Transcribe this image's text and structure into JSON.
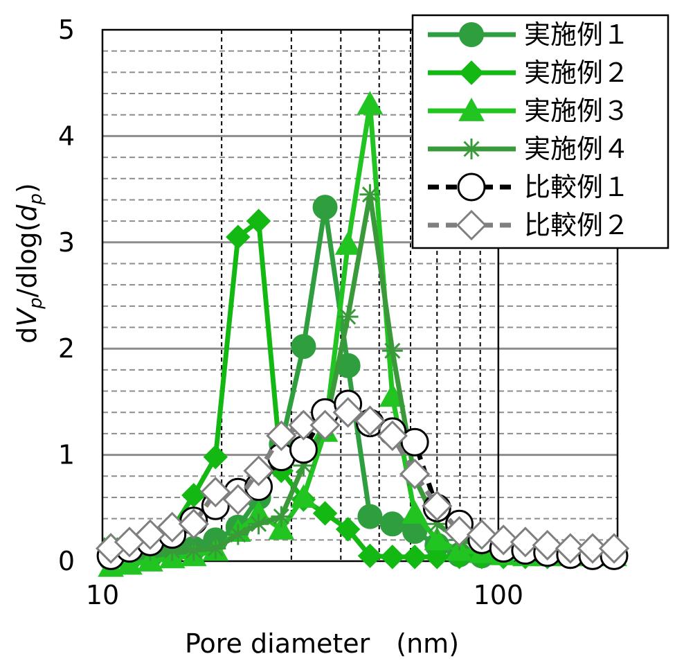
{
  "chart_data": {
    "type": "line",
    "xscale": "log",
    "xlim": [
      10,
      200
    ],
    "ylim": [
      0,
      5
    ],
    "xticks": [
      10,
      100
    ],
    "xtick_labels": [
      "10",
      "100"
    ],
    "yticks": [
      0,
      1,
      2,
      3,
      4,
      5
    ],
    "ytick_labels": [
      "0",
      "1",
      "2",
      "3",
      "4",
      "5"
    ],
    "xlabel": "Pore diameter　(nm)",
    "ylabel": {
      "d": "d",
      "V": "V",
      "p": "p",
      "slash": "/",
      "dlog": "dlog(",
      "dp": "d",
      "sub": "p",
      "close": ")"
    },
    "grid": true,
    "legend_position": "top-right",
    "series": [
      {
        "name": "実施例１",
        "color": "#2e9e3e",
        "marker": "circle",
        "dash": "solid",
        "x": [
          10.5,
          11.7,
          13.2,
          15,
          17,
          19.3,
          22,
          24.8,
          28.3,
          32.2,
          36.5,
          41.7,
          47.4,
          54,
          61.5,
          70,
          79.7,
          90.8
        ],
        "y": [
          0.02,
          0.03,
          0.05,
          0.08,
          0.12,
          0.2,
          0.32,
          0.6,
          1.1,
          2.02,
          3.33,
          1.84,
          0.42,
          0.35,
          0.28,
          0.15,
          0.06,
          0.05
        ]
      },
      {
        "name": "実施例２",
        "color": "#13b813",
        "marker": "diamond",
        "dash": "solid",
        "x": [
          10.5,
          11.7,
          13.2,
          15,
          17,
          19.3,
          22,
          24.8,
          28.3,
          32.2,
          36.5,
          41.7,
          47.4,
          54,
          61.5,
          70,
          79.7,
          90.8,
          103,
          117,
          133,
          152,
          173,
          196
        ],
        "y": [
          0.15,
          0.18,
          0.22,
          0.3,
          0.62,
          0.98,
          3.05,
          3.2,
          0.85,
          0.58,
          0.45,
          0.3,
          0.05,
          0.04,
          0.04,
          0.04,
          0.04,
          0.04,
          0.04,
          0.04,
          0.04,
          0.04,
          0.04,
          0.04
        ]
      },
      {
        "name": "実施例３",
        "color": "#22c422",
        "marker": "triangle",
        "dash": "solid",
        "x": [
          10.5,
          11.7,
          13.2,
          15,
          17,
          19.3,
          22,
          24.8,
          28.3,
          32.2,
          36.5,
          41.7,
          47.4,
          54,
          61.5,
          70,
          79.7,
          90.8,
          103,
          117,
          133,
          152,
          173,
          196
        ],
        "y": [
          -0.05,
          -0.03,
          0,
          0.03,
          0.05,
          0.1,
          0.28,
          0.45,
          0.3,
          0.6,
          1.22,
          2.98,
          4.3,
          1.55,
          0.45,
          0.2,
          0.1,
          0.08,
          0.06,
          0.05,
          0.05,
          0.05,
          0.05,
          0.05
        ]
      },
      {
        "name": "実施例４",
        "color": "#3a9a3a",
        "marker": "asterisk",
        "dash": "solid",
        "x": [
          10.5,
          11.7,
          13.2,
          15,
          17,
          19.3,
          22,
          24.8,
          28.3,
          32.2,
          36.5,
          41.7,
          47.4,
          54,
          61.5,
          70,
          79.7,
          90.8,
          103,
          117,
          133,
          152,
          173,
          196
        ],
        "y": [
          0.15,
          0.12,
          0.1,
          0.1,
          0.1,
          0.12,
          0.25,
          0.35,
          0.42,
          0.9,
          1.25,
          2.3,
          3.45,
          1.98,
          0.78,
          0.35,
          0.2,
          0.15,
          0.12,
          0.12,
          0.12,
          0.12,
          0.12,
          0.12
        ]
      },
      {
        "name": "比較例１",
        "color": "#000000",
        "marker": "circle-open",
        "dash": "dashed",
        "x": [
          10.5,
          11.7,
          13.2,
          15,
          17,
          19.3,
          22,
          24.8,
          28.3,
          32.2,
          36.5,
          41.7,
          47.4,
          54,
          61.5,
          70,
          79.7,
          90.8,
          103,
          117,
          133,
          152,
          173,
          196
        ],
        "y": [
          0.05,
          0.12,
          0.18,
          0.25,
          0.38,
          0.52,
          0.65,
          0.7,
          0.98,
          1.05,
          1.4,
          1.48,
          1.3,
          1.22,
          1.12,
          0.5,
          0.35,
          0.2,
          0.12,
          0.1,
          0.08,
          0.06,
          0.05,
          0.05
        ]
      },
      {
        "name": "比較例２",
        "color": "#7f7f7f",
        "marker": "diamond-open",
        "dash": "dashed",
        "x": [
          10.5,
          11.7,
          13.2,
          15,
          17,
          19.3,
          22,
          24.8,
          28.3,
          32.2,
          36.5,
          41.7,
          47.4,
          54,
          61.5,
          70,
          79.7,
          90.8,
          103,
          117,
          133,
          152,
          173,
          196
        ],
        "y": [
          0.12,
          0.18,
          0.25,
          0.32,
          0.35,
          0.65,
          0.58,
          0.85,
          1.18,
          1.28,
          1.28,
          1.4,
          1.32,
          1.18,
          0.82,
          0.52,
          0.28,
          0.25,
          0.2,
          0.18,
          0.15,
          0.12,
          0.12,
          0.12
        ]
      }
    ]
  }
}
